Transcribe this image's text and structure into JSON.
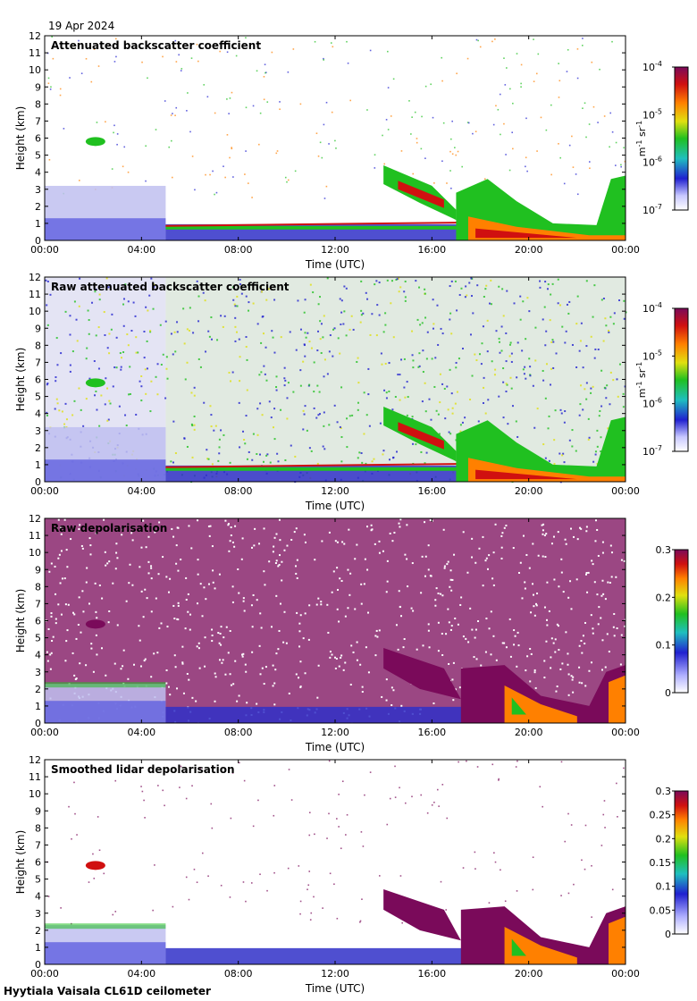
{
  "date_label": "19 Apr 2024",
  "footer_label": "Hyytiala Vaisala CL61D ceilometer",
  "colors": {
    "blue": "#2020d0",
    "green": "#20c020",
    "red": "#d01010",
    "purple": "#7a0a5a"
  },
  "chart_data": [
    {
      "type": "heatmap",
      "title": "Attenuated backscatter coefficient",
      "xlabel": "Time (UTC)",
      "ylabel": "Height (km)",
      "xlim": [
        "00:00",
        "00:00"
      ],
      "xticks": [
        "00:00",
        "04:00",
        "08:00",
        "12:00",
        "16:00",
        "20:00",
        "00:00"
      ],
      "ylim": [
        0,
        12
      ],
      "yticks": [
        "0",
        "1",
        "2",
        "3",
        "4",
        "5",
        "6",
        "7",
        "8",
        "9",
        "10",
        "11",
        "12"
      ],
      "colorbar": {
        "scale": "log",
        "range": [
          1e-07,
          0.0001
        ],
        "tick_mantissa": [
          "10",
          "10",
          "10",
          "10"
        ],
        "tick_exponents": [
          "-7",
          "-6",
          "-5",
          "-4"
        ],
        "unit_parts": [
          "m",
          "-1",
          " sr",
          "-1"
        ]
      },
      "cloud_base_km": [
        0.85,
        0.85,
        0.9,
        0.95,
        1.0,
        1.05,
        1.1,
        1.05,
        0.9,
        0.6,
        0.2,
        0.2,
        0.2
      ]
    },
    {
      "type": "heatmap",
      "title": "Raw attenuated backscatter coefficient",
      "xlabel": "Time (UTC)",
      "ylabel": "Height (km)",
      "xlim": [
        "00:00",
        "00:00"
      ],
      "xticks": [
        "00:00",
        "04:00",
        "08:00",
        "12:00",
        "16:00",
        "20:00",
        "00:00"
      ],
      "ylim": [
        0,
        12
      ],
      "yticks": [
        "0",
        "1",
        "2",
        "3",
        "4",
        "5",
        "6",
        "7",
        "8",
        "9",
        "10",
        "11",
        "12"
      ],
      "colorbar": {
        "scale": "log",
        "range": [
          1e-07,
          0.0001
        ],
        "tick_mantissa": [
          "10",
          "10",
          "10",
          "10"
        ],
        "tick_exponents": [
          "-7",
          "-6",
          "-5",
          "-4"
        ],
        "unit_parts": [
          "m",
          "-1",
          " sr",
          "-1"
        ]
      }
    },
    {
      "type": "heatmap",
      "title": "Raw depolarisation",
      "xlabel": "Time (UTC)",
      "ylabel": "Height (km)",
      "xlim": [
        "00:00",
        "00:00"
      ],
      "xticks": [
        "00:00",
        "04:00",
        "08:00",
        "12:00",
        "16:00",
        "20:00",
        "00:00"
      ],
      "ylim": [
        0,
        12
      ],
      "yticks": [
        "0",
        "1",
        "2",
        "3",
        "4",
        "5",
        "6",
        "7",
        "8",
        "9",
        "10",
        "11",
        "12"
      ],
      "colorbar": {
        "scale": "linear",
        "range": [
          0,
          0.3
        ],
        "tick_labels": [
          "0",
          "0.1",
          "0.2",
          "0.3"
        ]
      }
    },
    {
      "type": "heatmap",
      "title": "Smoothed lidar depolarisation",
      "xlabel": "Time (UTC)",
      "ylabel": "Height (km)",
      "xlim": [
        "00:00",
        "00:00"
      ],
      "xticks": [
        "00:00",
        "04:00",
        "08:00",
        "12:00",
        "16:00",
        "20:00",
        "00:00"
      ],
      "ylim": [
        0,
        12
      ],
      "yticks": [
        "0",
        "1",
        "2",
        "3",
        "4",
        "5",
        "6",
        "7",
        "8",
        "9",
        "10",
        "11",
        "12"
      ],
      "colorbar": {
        "scale": "linear",
        "range": [
          0,
          0.3
        ],
        "tick_labels": [
          "0",
          "0.05",
          "0.1",
          "0.15",
          "0.2",
          "0.25",
          "0.3"
        ]
      }
    }
  ]
}
